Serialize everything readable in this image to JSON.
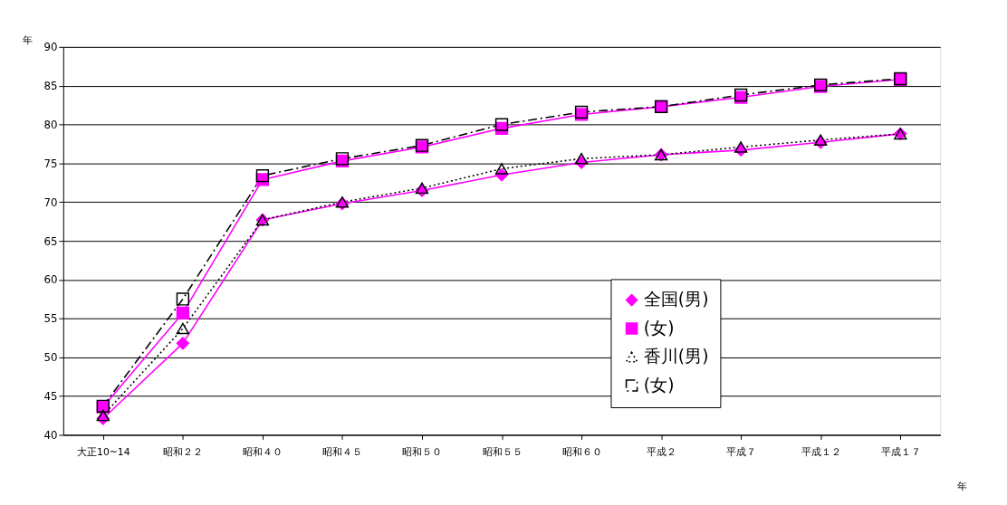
{
  "chart_data": {
    "type": "line",
    "xlabel": "年",
    "ylabel": "年",
    "categories": [
      "大正10~14",
      "昭和２２",
      "昭和４０",
      "昭和４５",
      "昭和５０",
      "昭和５５",
      "昭和６０",
      "平成２",
      "平成７",
      "平成１２",
      "平成１７"
    ],
    "series": [
      {
        "name": "全国(男)",
        "color": "#ff00ff",
        "marker": "diamond",
        "line_style": "solid",
        "values": [
          42.1,
          51.8,
          67.7,
          69.8,
          71.5,
          73.5,
          75.1,
          76.1,
          76.7,
          77.7,
          78.8
        ]
      },
      {
        "name": "(女)",
        "color": "#ff00ff",
        "marker": "square",
        "line_style": "solid",
        "values": [
          43.6,
          55.7,
          72.9,
          75.3,
          77.1,
          79.5,
          81.3,
          82.3,
          83.5,
          84.9,
          85.8
        ]
      },
      {
        "name": "香川(男)",
        "color": "#000000",
        "marker": "triangle",
        "line_style": "dotted",
        "values": [
          42.5,
          53.7,
          67.7,
          70.0,
          71.8,
          74.3,
          75.6,
          76.1,
          77.1,
          78.0,
          78.8
        ]
      },
      {
        "name": "(女)",
        "color": "#000000",
        "marker": "square",
        "line_style": "dashed",
        "values": [
          43.7,
          57.5,
          73.4,
          75.6,
          77.3,
          80.0,
          81.6,
          82.3,
          83.8,
          85.1,
          85.9
        ]
      }
    ],
    "ylim": [
      40,
      90
    ],
    "yticks": [
      40,
      45,
      50,
      55,
      60,
      65,
      70,
      75,
      80,
      85,
      90
    ],
    "grid": "y",
    "legend": "bottom right"
  }
}
